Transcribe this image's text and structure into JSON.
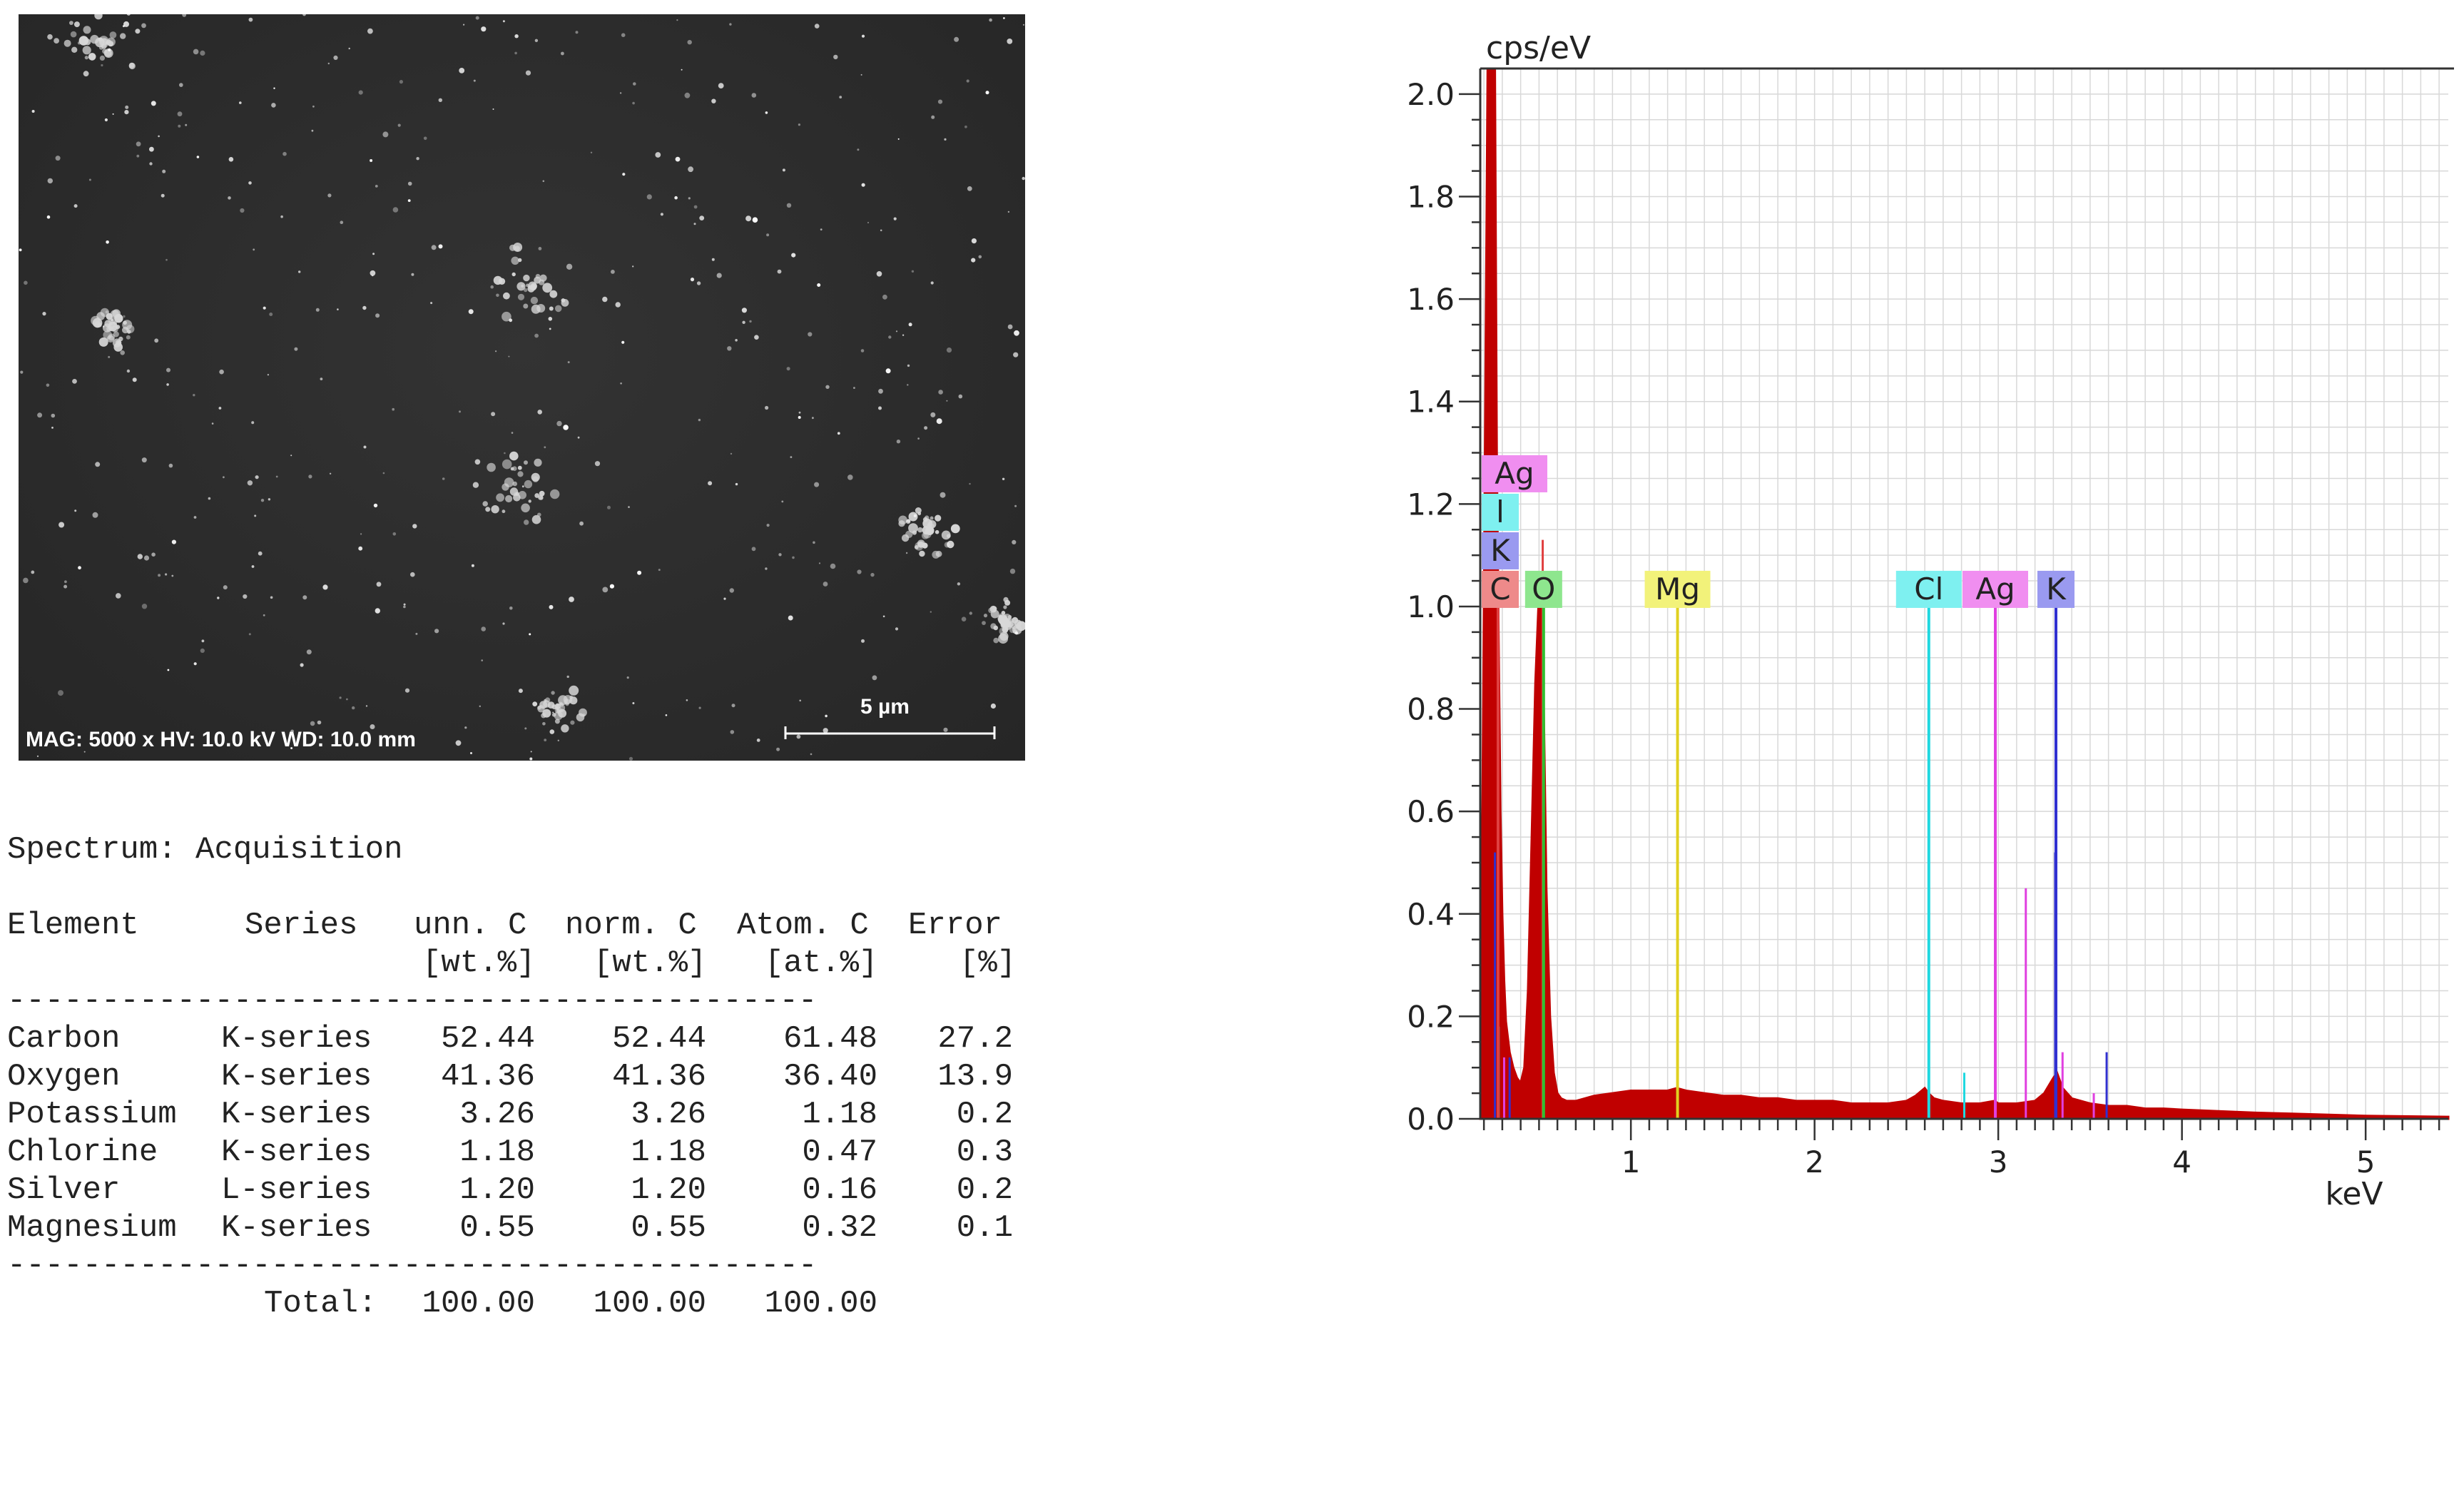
{
  "sem_image": {
    "info_text": "MAG: 5000 x  HV: 10.0 kV  WD: 10.0 mm",
    "scale_bar_label": "5 µm"
  },
  "results": {
    "spectrum_line": "Spectrum: Acquisition",
    "headers": [
      [
        "Element",
        ""
      ],
      [
        "Series",
        ""
      ],
      [
        "unn. C",
        "[wt.%]"
      ],
      [
        "norm. C",
        "[wt.%]"
      ],
      [
        "Atom. C",
        "[at.%]"
      ],
      [
        "Error",
        "[%]"
      ]
    ],
    "separator": "-------------------------------------------",
    "rows": [
      [
        "Carbon",
        "K-series",
        "52.44",
        "52.44",
        "61.48",
        "27.2"
      ],
      [
        "Oxygen",
        "K-series",
        "41.36",
        "41.36",
        "36.40",
        "13.9"
      ],
      [
        "Potassium",
        "K-series",
        "3.26",
        "3.26",
        "1.18",
        "0.2"
      ],
      [
        "Chlorine",
        "K-series",
        "1.18",
        "1.18",
        "0.47",
        "0.3"
      ],
      [
        "Silver",
        "L-series",
        "1.20",
        "1.20",
        "0.16",
        "0.2"
      ],
      [
        "Magnesium",
        "K-series",
        "0.55",
        "0.55",
        "0.32",
        "0.1"
      ]
    ],
    "total_label": "Total:",
    "totals": [
      "100.00",
      "100.00",
      "100.00"
    ]
  },
  "chart_data": {
    "type": "area",
    "ylabel": "cps/eV",
    "xlabel": "keV",
    "xlim": [
      0.18,
      5.45
    ],
    "ylim": [
      0,
      2.05
    ],
    "x_ticks": [
      1,
      2,
      3,
      4,
      5
    ],
    "y_ticks": [
      0.0,
      0.2,
      0.4,
      0.6,
      0.8,
      1.0,
      1.2,
      1.4,
      1.6,
      1.8,
      2.0
    ],
    "x_tick_labels": [
      "1",
      "2",
      "3",
      "4",
      "5"
    ],
    "y_tick_labels": [
      "0.0",
      "0.2",
      "0.4",
      "0.6",
      "0.8",
      "1.0",
      "1.2",
      "1.4",
      "1.6",
      "1.8",
      "2.0"
    ],
    "grid": true,
    "spectrum_color": "#c00000",
    "spectrum": {
      "x": [
        0.18,
        0.2,
        0.22,
        0.24,
        0.25,
        0.26,
        0.27,
        0.28,
        0.29,
        0.3,
        0.31,
        0.32,
        0.34,
        0.36,
        0.38,
        0.4,
        0.42,
        0.44,
        0.46,
        0.48,
        0.5,
        0.51,
        0.52,
        0.53,
        0.54,
        0.56,
        0.58,
        0.6,
        0.62,
        0.65,
        0.7,
        0.8,
        0.9,
        1.0,
        1.1,
        1.2,
        1.25,
        1.3,
        1.4,
        1.5,
        1.6,
        1.7,
        1.8,
        1.9,
        2.0,
        2.1,
        2.2,
        2.3,
        2.4,
        2.5,
        2.55,
        2.6,
        2.62,
        2.65,
        2.7,
        2.8,
        2.9,
        2.98,
        3.0,
        3.1,
        3.2,
        3.25,
        3.3,
        3.32,
        3.35,
        3.4,
        3.5,
        3.6,
        3.7,
        3.8,
        3.9,
        4.0,
        4.2,
        4.4,
        4.6,
        4.8,
        5.0,
        5.2,
        5.45
      ],
      "y": [
        0.0,
        1.0,
        2.05,
        2.05,
        2.05,
        2.05,
        1.3,
        0.95,
        0.6,
        0.4,
        0.27,
        0.19,
        0.13,
        0.1,
        0.08,
        0.07,
        0.1,
        0.25,
        0.55,
        0.85,
        1.03,
        1.05,
        0.95,
        0.7,
        0.45,
        0.2,
        0.09,
        0.05,
        0.04,
        0.035,
        0.035,
        0.045,
        0.05,
        0.055,
        0.055,
        0.055,
        0.06,
        0.055,
        0.05,
        0.045,
        0.045,
        0.04,
        0.04,
        0.035,
        0.035,
        0.035,
        0.03,
        0.03,
        0.03,
        0.035,
        0.045,
        0.06,
        0.05,
        0.04,
        0.035,
        0.03,
        0.03,
        0.035,
        0.03,
        0.03,
        0.035,
        0.05,
        0.08,
        0.09,
        0.06,
        0.04,
        0.03,
        0.025,
        0.025,
        0.02,
        0.02,
        0.018,
        0.015,
        0.012,
        0.01,
        0.008,
        0.006,
        0.005,
        0.004
      ]
    },
    "element_markers": [
      {
        "label": "C",
        "energy": 0.277,
        "color": "#ee8a8a"
      },
      {
        "label": "O",
        "energy": 0.525,
        "color": "#8ee68e"
      },
      {
        "label": "Mg",
        "energy": 1.254,
        "color": "#f2f27a"
      },
      {
        "label": "Cl",
        "energy": 2.622,
        "color": "#7ef0f0"
      },
      {
        "label": "Ag",
        "energy": 2.984,
        "color": "#f08ef0"
      },
      {
        "label": "K",
        "energy": 3.314,
        "color": "#9a9af0"
      }
    ],
    "stacked_labels": [
      {
        "label": "K",
        "color": "#9a9af0"
      },
      {
        "label": "l",
        "color": "#7ef0f0"
      },
      {
        "label": "Ag",
        "color": "#f08ef0"
      }
    ],
    "marker_line_colors": {
      "C": "#e04040",
      "O": "#30c030",
      "Mg": "#e0d020",
      "Cl": "#20d8e0",
      "Ag": "#e040e0",
      "K": "#3030d0"
    },
    "secondary_lines": [
      {
        "energy": 0.26,
        "height": 0.52,
        "color": "#3030d0"
      },
      {
        "energy": 0.28,
        "height": 0.18,
        "color": "#20d8e0"
      },
      {
        "energy": 0.31,
        "height": 0.12,
        "color": "#e040e0"
      },
      {
        "energy": 0.34,
        "height": 0.12,
        "color": "#3030d0"
      },
      {
        "energy": 0.52,
        "height": 1.13,
        "color": "#e04040"
      },
      {
        "energy": 2.815,
        "height": 0.09,
        "color": "#20d8e0"
      },
      {
        "energy": 3.15,
        "height": 0.45,
        "color": "#e040e0"
      },
      {
        "energy": 3.31,
        "height": 0.52,
        "color": "#3030d0"
      },
      {
        "energy": 3.35,
        "height": 0.13,
        "color": "#e040e0"
      },
      {
        "energy": 3.59,
        "height": 0.13,
        "color": "#3030d0"
      },
      {
        "energy": 3.52,
        "height": 0.05,
        "color": "#e040e0"
      }
    ]
  }
}
